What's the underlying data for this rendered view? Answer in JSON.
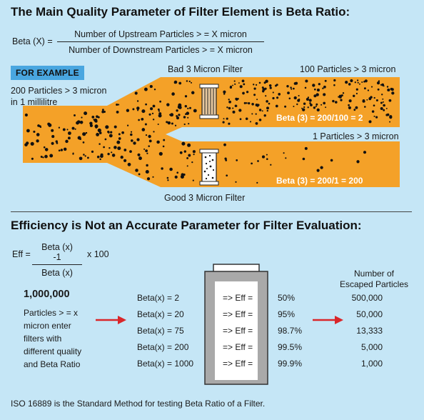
{
  "section1": {
    "heading": "The Main Quality Parameter of Filter Element is Beta Ratio:",
    "formula": {
      "lhs": "Beta (X) =",
      "numerator": "Number of Upstream Particles > = X micron",
      "denominator": "Number of Downstream Particles > = X micron"
    },
    "example_badge": "FOR EXAMPLE",
    "upstream_label_line1": "200 Particles > 3 micron",
    "upstream_label_line2": "in 1 millilitre",
    "bad_filter_label": "Bad 3 Micron Filter",
    "bad_downstream_label": "100 Particles > 3 micron",
    "bad_beta_result": "Beta (3) = 200/100 = 2",
    "good_downstream_label": "1 Particles > 3 micron",
    "good_beta_result": "Beta (3) = 200/1 = 200",
    "good_filter_label": "Good 3 Micron Filter",
    "colors": {
      "pipe": "#f4a128",
      "particle": "#111111",
      "background": "#c5e6f6",
      "badge": "#49a6e0"
    }
  },
  "section2": {
    "heading": "Efficiency is Not an Accurate Parameter for Filter Evaluation:",
    "formula": {
      "lhs": "Eff =",
      "numerator": "Beta (x) -1",
      "denominator": "Beta (x)",
      "rhs": "x 100"
    },
    "count": "1,000,000",
    "description_lines": [
      "Particles > = x",
      "micron enter",
      "filters with",
      "different quality",
      "and Beta Ratio"
    ],
    "escaped_header_line1": "Number of",
    "escaped_header_line2": "Escaped Particles",
    "rows": [
      {
        "beta": "Beta(x) = 2",
        "arrow": "=> Eff =",
        "eff": "50%",
        "escaped": "500,000"
      },
      {
        "beta": "Beta(x) = 20",
        "arrow": "=> Eff =",
        "eff": "95%",
        "escaped": "50,000"
      },
      {
        "beta": "Beta(x) = 75",
        "arrow": "=> Eff =",
        "eff": "98.7%",
        "escaped": "13,333"
      },
      {
        "beta": "Beta(x) = 200",
        "arrow": "=> Eff =",
        "eff": "99.5%",
        "escaped": "5,000"
      },
      {
        "beta": "Beta(x) = 1000",
        "arrow": "=> Eff =",
        "eff": "99.9%",
        "escaped": "1,000"
      }
    ],
    "arrow_color": "#d9262a",
    "footer": "ISO 16889 is the Standard Method for testing Beta Ratio of a Filter."
  }
}
